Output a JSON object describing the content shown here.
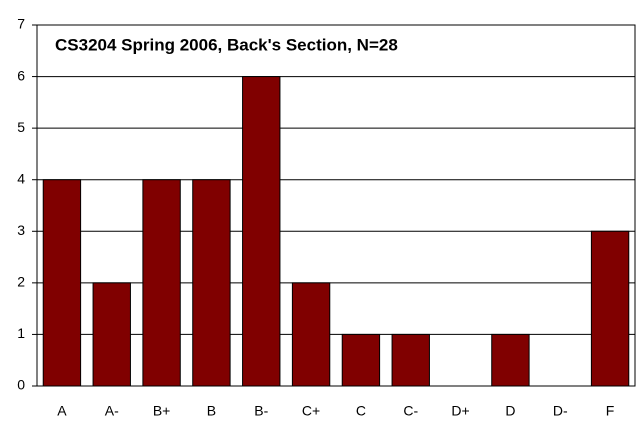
{
  "chart_data": {
    "type": "bar",
    "title": "CS3204 Spring 2006, Back's Section, N=28",
    "categories": [
      "A",
      "A-",
      "B+",
      "B",
      "B-",
      "C+",
      "C",
      "C-",
      "D+",
      "D",
      "D-",
      "F"
    ],
    "values": [
      4,
      2,
      4,
      4,
      6,
      2,
      1,
      1,
      0,
      1,
      0,
      3
    ],
    "color": "#800000",
    "ylim": [
      0,
      7
    ],
    "yticks": [
      0,
      1,
      2,
      3,
      4,
      5,
      6,
      7
    ],
    "grid": true
  }
}
